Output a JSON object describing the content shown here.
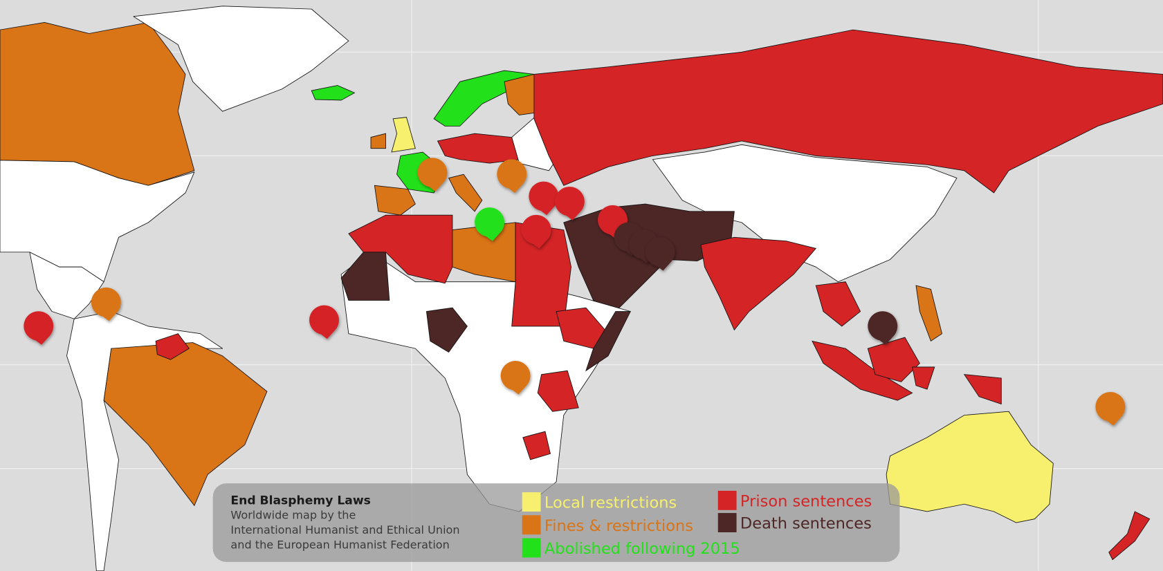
{
  "legend": {
    "title": "End Blasphemy Laws",
    "subtitle": [
      "Worldwide map by the",
      "International Humanist and Ethical Union",
      "and the European Humanist Federation"
    ],
    "items": [
      {
        "label": "Local restrictions",
        "color": "#f7f06e"
      },
      {
        "label": "Fines & restrictions",
        "color": "#d97417"
      },
      {
        "label": "Abolished following 2015",
        "color": "#22e01a"
      },
      {
        "label": "Prison sentences",
        "color": "#d42426"
      },
      {
        "label": "Death sentences",
        "color": "#4d2626"
      }
    ]
  }
}
